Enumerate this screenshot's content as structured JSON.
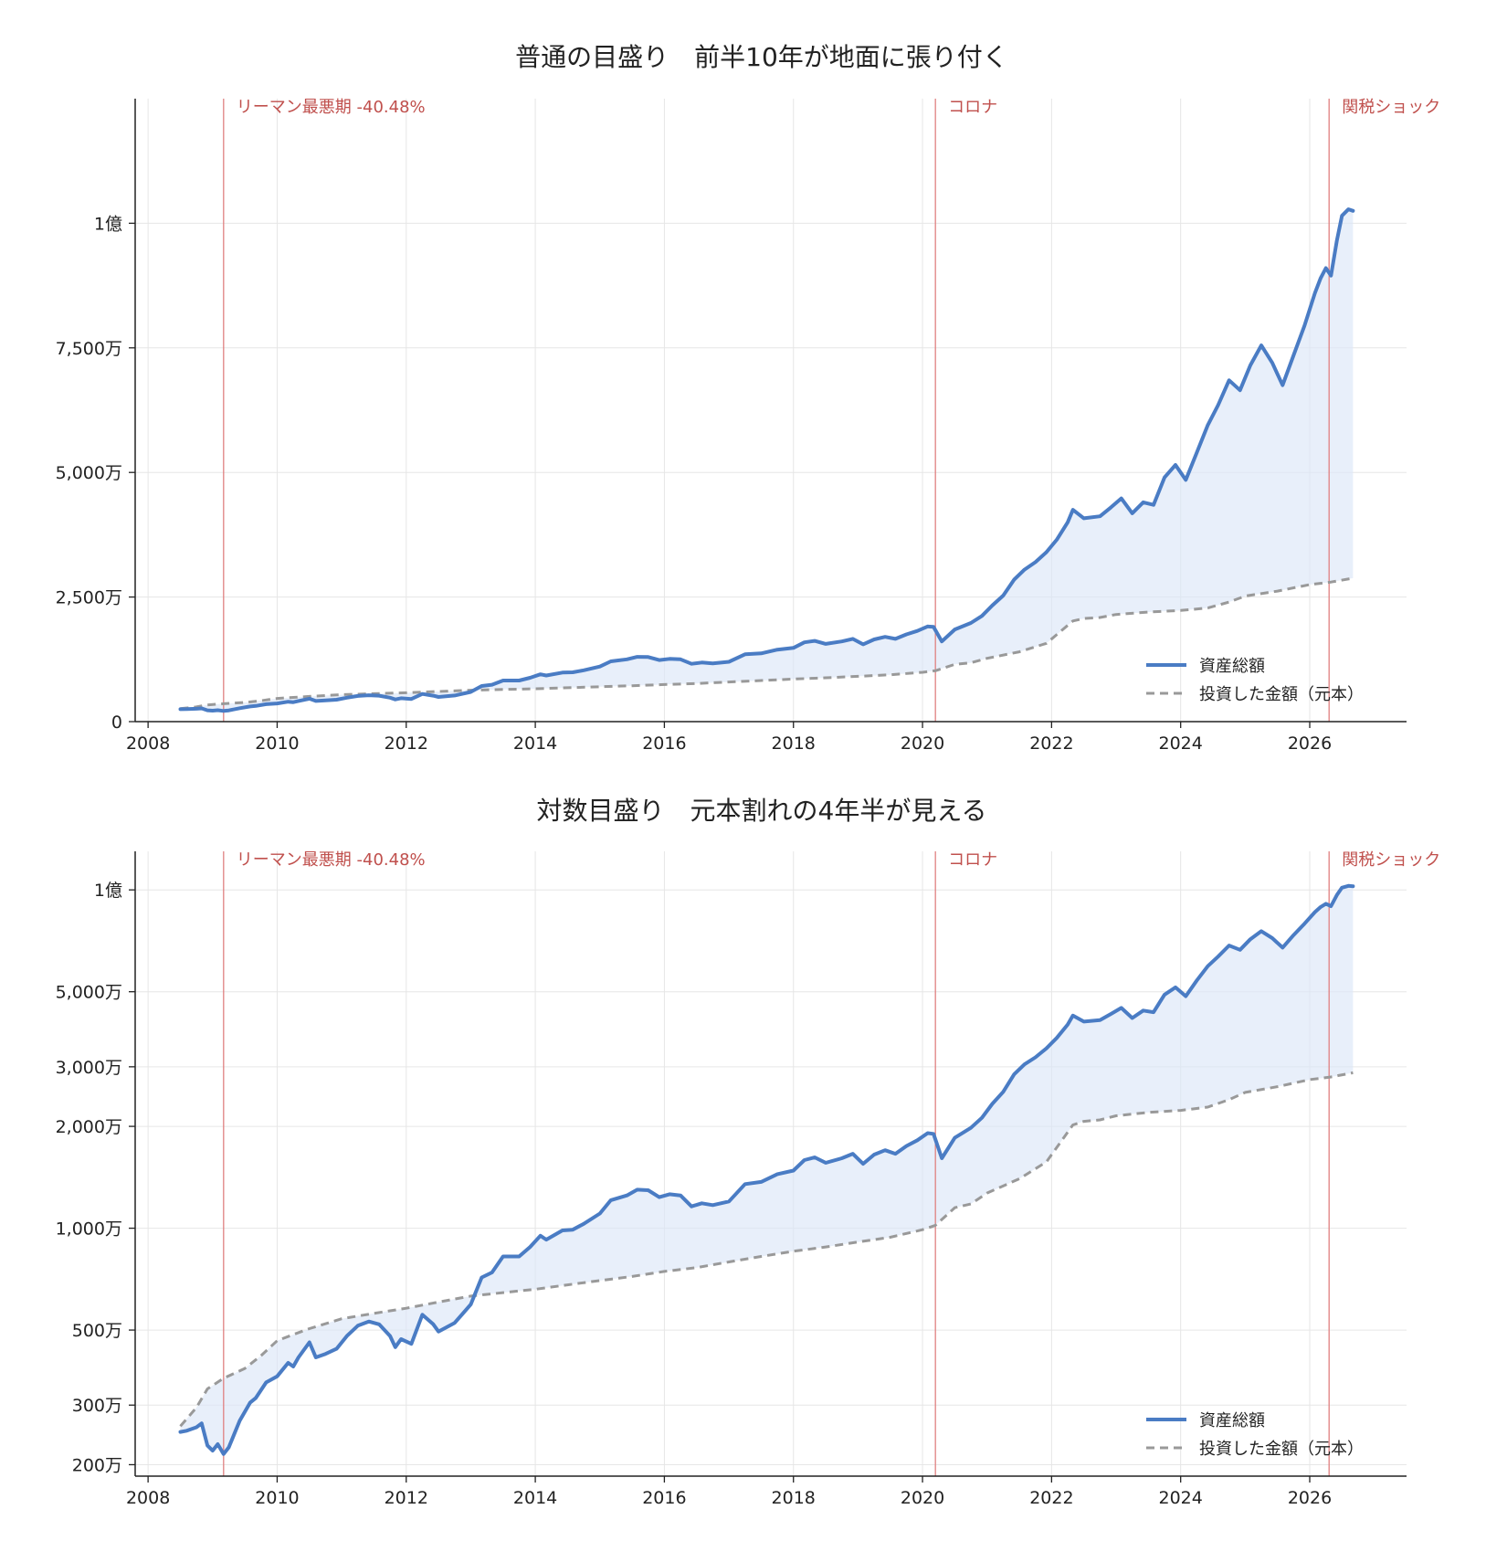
{
  "chart_data": [
    {
      "type": "line",
      "title": "普通の目盛り　前半10年が地面に張り付く",
      "yscale": "linear",
      "xlim": [
        2007.8,
        2027.5
      ],
      "ylim": [
        0,
        125000000
      ],
      "xticks": [
        2008,
        2010,
        2012,
        2014,
        2016,
        2018,
        2020,
        2022,
        2024,
        2026
      ],
      "xtick_labels": [
        "2008",
        "2010",
        "2012",
        "2014",
        "2016",
        "2018",
        "2020",
        "2022",
        "2024",
        "2026"
      ],
      "yticks": [
        0,
        25000000,
        50000000,
        75000000,
        100000000
      ],
      "ytick_labels": [
        "0",
        "2,500万",
        "5,000万",
        "7,500万",
        "1億"
      ],
      "grid": true,
      "legend_position": "lower-right",
      "fill_between_series": true,
      "events": [
        {
          "x": 2009.17,
          "label": "リーマン最悪期 -40.48%"
        },
        {
          "x": 2020.2,
          "label": "コロナ"
        },
        {
          "x": 2026.3,
          "label": "関税ショック"
        }
      ]
    },
    {
      "type": "line",
      "title": "対数目盛り　元本割れの4年半が見える",
      "yscale": "log",
      "xlim": [
        2007.8,
        2027.5
      ],
      "ylim": [
        1850000,
        130000000
      ],
      "xticks": [
        2008,
        2010,
        2012,
        2014,
        2016,
        2018,
        2020,
        2022,
        2024,
        2026
      ],
      "xtick_labels": [
        "2008",
        "2010",
        "2012",
        "2014",
        "2016",
        "2018",
        "2020",
        "2022",
        "2024",
        "2026"
      ],
      "yticks": [
        2000000,
        3000000,
        5000000,
        10000000,
        20000000,
        30000000,
        50000000,
        100000000
      ],
      "ytick_labels": [
        "200万",
        "300万",
        "500万",
        "1,000万",
        "2,000万",
        "3,000万",
        "5,000万",
        "1億"
      ],
      "grid": true,
      "legend_position": "lower-right",
      "fill_between_series": true,
      "events": [
        {
          "x": 2009.17,
          "label": "リーマン最悪期 -40.48%"
        },
        {
          "x": 2020.2,
          "label": "コロナ"
        },
        {
          "x": 2026.3,
          "label": "関税ショック"
        }
      ]
    }
  ],
  "series": [
    {
      "name": "資産総額",
      "color": "#4a7cc4",
      "style": "solid",
      "points": [
        [
          2008.5,
          2500000
        ],
        [
          2008.6,
          2520000
        ],
        [
          2008.75,
          2580000
        ],
        [
          2008.83,
          2650000
        ],
        [
          2008.92,
          2280000
        ],
        [
          2009.0,
          2200000
        ],
        [
          2009.08,
          2300000
        ],
        [
          2009.17,
          2150000
        ],
        [
          2009.25,
          2250000
        ],
        [
          2009.42,
          2700000
        ],
        [
          2009.58,
          3050000
        ],
        [
          2009.67,
          3150000
        ],
        [
          2009.83,
          3500000
        ],
        [
          2010.0,
          3650000
        ],
        [
          2010.17,
          4000000
        ],
        [
          2010.25,
          3900000
        ],
        [
          2010.33,
          4150000
        ],
        [
          2010.5,
          4600000
        ],
        [
          2010.6,
          4150000
        ],
        [
          2010.75,
          4250000
        ],
        [
          2010.92,
          4400000
        ],
        [
          2011.08,
          4800000
        ],
        [
          2011.25,
          5150000
        ],
        [
          2011.42,
          5300000
        ],
        [
          2011.58,
          5200000
        ],
        [
          2011.75,
          4800000
        ],
        [
          2011.83,
          4450000
        ],
        [
          2011.92,
          4700000
        ],
        [
          2012.08,
          4550000
        ],
        [
          2012.25,
          5550000
        ],
        [
          2012.42,
          5200000
        ],
        [
          2012.5,
          4950000
        ],
        [
          2012.75,
          5250000
        ],
        [
          2013.0,
          5950000
        ],
        [
          2013.17,
          7150000
        ],
        [
          2013.33,
          7400000
        ],
        [
          2013.5,
          8250000
        ],
        [
          2013.75,
          8250000
        ],
        [
          2013.92,
          8800000
        ],
        [
          2014.08,
          9500000
        ],
        [
          2014.17,
          9250000
        ],
        [
          2014.42,
          9850000
        ],
        [
          2014.58,
          9900000
        ],
        [
          2014.75,
          10300000
        ],
        [
          2015.0,
          11050000
        ],
        [
          2015.17,
          12100000
        ],
        [
          2015.42,
          12500000
        ],
        [
          2015.58,
          13000000
        ],
        [
          2015.75,
          12950000
        ],
        [
          2015.92,
          12350000
        ],
        [
          2016.08,
          12600000
        ],
        [
          2016.25,
          12500000
        ],
        [
          2016.42,
          11600000
        ],
        [
          2016.58,
          11850000
        ],
        [
          2016.75,
          11700000
        ],
        [
          2017.0,
          12000000
        ],
        [
          2017.25,
          13500000
        ],
        [
          2017.5,
          13700000
        ],
        [
          2017.75,
          14450000
        ],
        [
          2018.0,
          14800000
        ],
        [
          2018.17,
          15900000
        ],
        [
          2018.33,
          16200000
        ],
        [
          2018.5,
          15600000
        ],
        [
          2018.75,
          16100000
        ],
        [
          2018.92,
          16600000
        ],
        [
          2019.08,
          15500000
        ],
        [
          2019.25,
          16500000
        ],
        [
          2019.42,
          17000000
        ],
        [
          2019.58,
          16600000
        ],
        [
          2019.75,
          17500000
        ],
        [
          2019.92,
          18200000
        ],
        [
          2020.08,
          19100000
        ],
        [
          2020.17,
          19000000
        ],
        [
          2020.3,
          16100000
        ],
        [
          2020.5,
          18500000
        ],
        [
          2020.75,
          19800000
        ],
        [
          2020.92,
          21200000
        ],
        [
          2021.08,
          23300000
        ],
        [
          2021.25,
          25300000
        ],
        [
          2021.42,
          28500000
        ],
        [
          2021.58,
          30500000
        ],
        [
          2021.75,
          32000000
        ],
        [
          2021.92,
          34000000
        ],
        [
          2022.08,
          36500000
        ],
        [
          2022.25,
          40000000
        ],
        [
          2022.33,
          42500000
        ],
        [
          2022.5,
          40800000
        ],
        [
          2022.75,
          41200000
        ],
        [
          2022.92,
          43000000
        ],
        [
          2023.08,
          44800000
        ],
        [
          2023.25,
          41800000
        ],
        [
          2023.42,
          44000000
        ],
        [
          2023.58,
          43500000
        ],
        [
          2023.75,
          49000000
        ],
        [
          2023.92,
          51500000
        ],
        [
          2024.08,
          48500000
        ],
        [
          2024.25,
          54000000
        ],
        [
          2024.42,
          59500000
        ],
        [
          2024.58,
          63500000
        ],
        [
          2024.75,
          68500000
        ],
        [
          2024.92,
          66500000
        ],
        [
          2025.08,
          71500000
        ],
        [
          2025.25,
          75500000
        ],
        [
          2025.42,
          72000000
        ],
        [
          2025.58,
          67500000
        ],
        [
          2025.75,
          73500000
        ],
        [
          2025.92,
          79500000
        ],
        [
          2026.08,
          86000000
        ],
        [
          2026.17,
          89000000
        ],
        [
          2026.25,
          91000000
        ],
        [
          2026.33,
          89500000
        ],
        [
          2026.42,
          96500000
        ],
        [
          2026.5,
          101500000
        ],
        [
          2026.6,
          102800000
        ],
        [
          2026.67,
          102500000
        ]
      ]
    },
    {
      "name": "投資した金額（元本）",
      "color": "#999999",
      "style": "dashed",
      "points": [
        [
          2008.5,
          2600000
        ],
        [
          2008.75,
          2950000
        ],
        [
          2008.92,
          3350000
        ],
        [
          2009.17,
          3600000
        ],
        [
          2009.5,
          3850000
        ],
        [
          2009.75,
          4200000
        ],
        [
          2010.0,
          4650000
        ],
        [
          2010.25,
          4850000
        ],
        [
          2010.5,
          5050000
        ],
        [
          2011.0,
          5400000
        ],
        [
          2011.5,
          5600000
        ],
        [
          2012.0,
          5800000
        ],
        [
          2012.5,
          6050000
        ],
        [
          2013.0,
          6300000
        ],
        [
          2013.5,
          6450000
        ],
        [
          2014.0,
          6600000
        ],
        [
          2014.5,
          6800000
        ],
        [
          2015.0,
          7000000
        ],
        [
          2015.5,
          7200000
        ],
        [
          2016.0,
          7450000
        ],
        [
          2016.5,
          7650000
        ],
        [
          2017.0,
          7950000
        ],
        [
          2017.5,
          8250000
        ],
        [
          2018.0,
          8550000
        ],
        [
          2018.5,
          8800000
        ],
        [
          2019.0,
          9100000
        ],
        [
          2019.5,
          9400000
        ],
        [
          2020.0,
          9900000
        ],
        [
          2020.2,
          10200000
        ],
        [
          2020.5,
          11500000
        ],
        [
          2020.75,
          11800000
        ],
        [
          2021.0,
          12700000
        ],
        [
          2021.5,
          14000000
        ],
        [
          2021.92,
          15700000
        ],
        [
          2022.33,
          20200000
        ],
        [
          2022.5,
          20700000
        ],
        [
          2022.75,
          20900000
        ],
        [
          2023.0,
          21500000
        ],
        [
          2023.5,
          22000000
        ],
        [
          2024.0,
          22300000
        ],
        [
          2024.42,
          22800000
        ],
        [
          2024.75,
          24000000
        ],
        [
          2025.0,
          25200000
        ],
        [
          2025.5,
          26200000
        ],
        [
          2026.0,
          27500000
        ],
        [
          2026.33,
          28000000
        ],
        [
          2026.67,
          28800000
        ]
      ]
    }
  ]
}
